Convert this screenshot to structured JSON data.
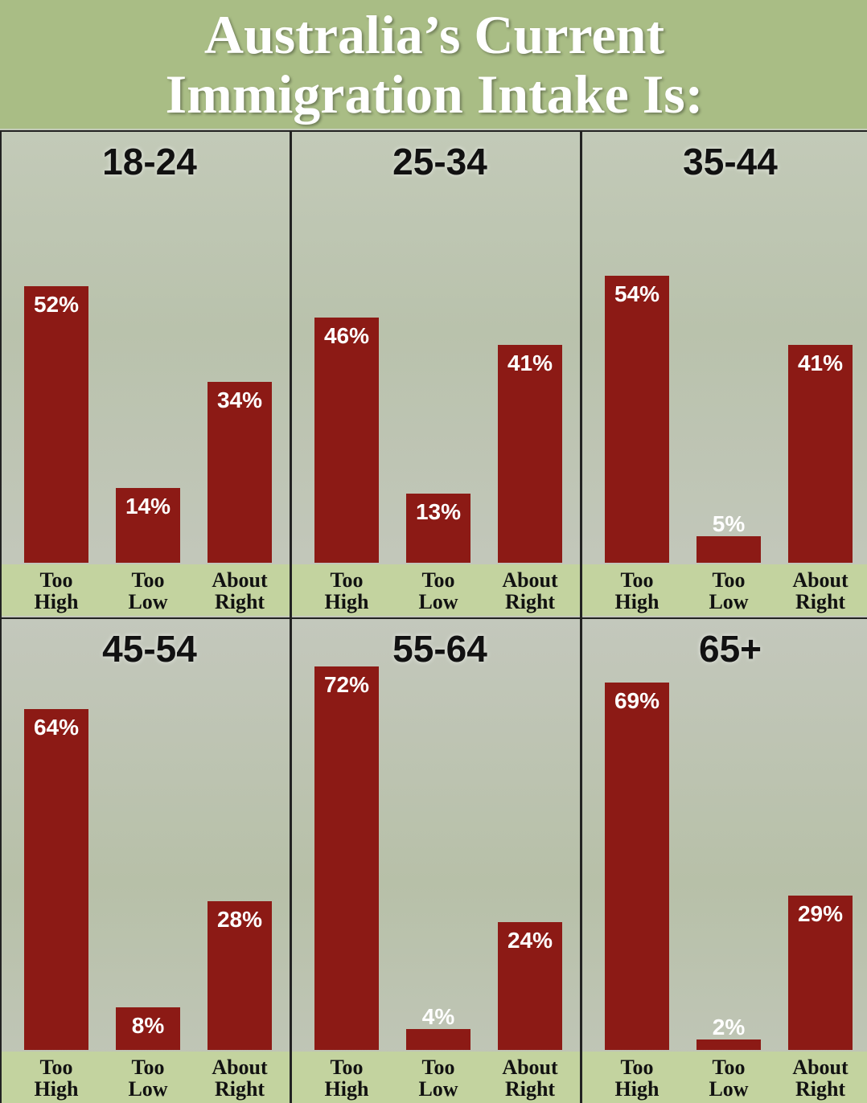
{
  "title": "Australia’s Current Immigration Intake Is:",
  "chart_data": [
    {
      "type": "bar",
      "title": "18-24",
      "categories": [
        "Too High",
        "Too Low",
        "About Right"
      ],
      "values": [
        52,
        14,
        34
      ],
      "value_labels": [
        "52%",
        "14%",
        "34%"
      ],
      "color": "#8c1a15"
    },
    {
      "type": "bar",
      "title": "25-34",
      "categories": [
        "Too High",
        "Too Low",
        "About Right"
      ],
      "values": [
        46,
        13,
        41
      ],
      "value_labels": [
        "46%",
        "13%",
        "41%"
      ],
      "color": "#8c1a15"
    },
    {
      "type": "bar",
      "title": "35-44",
      "categories": [
        "Too High",
        "Too Low",
        "About Right"
      ],
      "values": [
        54,
        5,
        41
      ],
      "value_labels": [
        "54%",
        "5%",
        "41%"
      ],
      "color": "#8c1a15"
    },
    {
      "type": "bar",
      "title": "45-54",
      "categories": [
        "Too High",
        "Too Low",
        "About Right"
      ],
      "values": [
        64,
        8,
        28
      ],
      "value_labels": [
        "64%",
        "8%",
        "28%"
      ],
      "color": "#8c1a15"
    },
    {
      "type": "bar",
      "title": "55-64",
      "categories": [
        "Too High",
        "Too Low",
        "About Right"
      ],
      "values": [
        72,
        4,
        24
      ],
      "value_labels": [
        "72%",
        "4%",
        "24%"
      ],
      "color": "#8c1a15"
    },
    {
      "type": "bar",
      "title": "65+",
      "categories": [
        "Too High",
        "Too Low",
        "About Right"
      ],
      "values": [
        69,
        2,
        29
      ],
      "value_labels": [
        "69%",
        "2%",
        "29%"
      ],
      "color": "#8c1a15"
    }
  ]
}
